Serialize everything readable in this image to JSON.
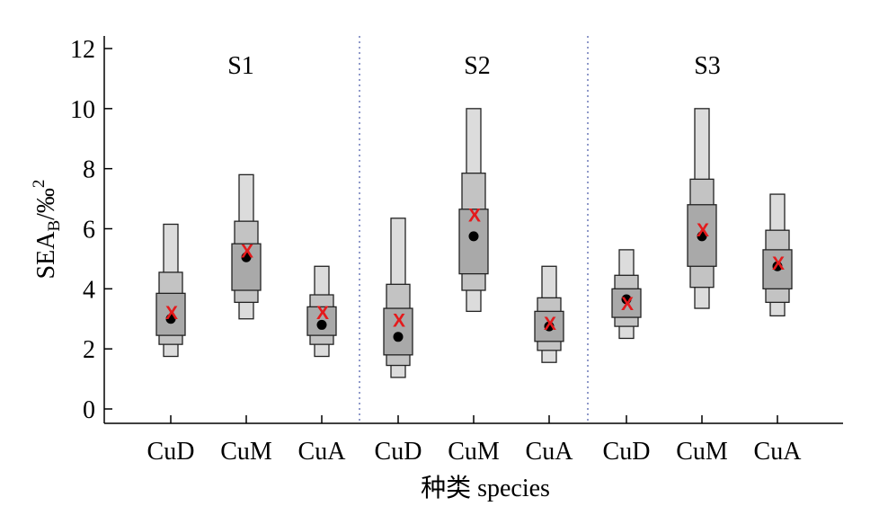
{
  "chart_data": {
    "type": "box",
    "ylabel": "SEA",
    "ylabel_sub": "B",
    "ylabel_unit": "/‰",
    "ylabel_sup": "2",
    "xlabel": "种类 species",
    "ylim": [
      -0.5,
      12.5
    ],
    "yticks": [
      0,
      2,
      4,
      6,
      8,
      10,
      12
    ],
    "grid": false,
    "legend": "none",
    "panels": [
      {
        "label": "S1",
        "categories": [
          "CuD",
          "CuM",
          "CuA"
        ],
        "credible_intervals": {
          "95": [
            [
              1.75,
              6.15
            ],
            [
              3.0,
              7.8
            ],
            [
              1.75,
              4.75
            ]
          ],
          "75": [
            [
              2.15,
              4.55
            ],
            [
              3.55,
              6.25
            ],
            [
              2.15,
              3.8
            ]
          ],
          "50": [
            [
              2.45,
              3.85
            ],
            [
              3.95,
              5.5
            ],
            [
              2.45,
              3.4
            ]
          ]
        },
        "mode": [
          3.0,
          5.05,
          2.8
        ],
        "mean": [
          3.2,
          5.25,
          3.2
        ]
      },
      {
        "label": "S2",
        "categories": [
          "CuD",
          "CuM",
          "CuA"
        ],
        "credible_intervals": {
          "95": [
            [
              1.05,
              6.35
            ],
            [
              3.25,
              10.0
            ],
            [
              1.55,
              4.75
            ]
          ],
          "75": [
            [
              1.45,
              4.15
            ],
            [
              3.95,
              7.85
            ],
            [
              1.95,
              3.7
            ]
          ],
          "50": [
            [
              1.8,
              3.35
            ],
            [
              4.5,
              6.65
            ],
            [
              2.25,
              3.25
            ]
          ]
        },
        "mode": [
          2.4,
          5.75,
          2.75
        ],
        "mean": [
          2.95,
          6.45,
          2.85
        ]
      },
      {
        "label": "S3",
        "categories": [
          "CuD",
          "CuM",
          "CuA"
        ],
        "credible_intervals": {
          "95": [
            [
              2.35,
              5.3
            ],
            [
              3.35,
              10.0
            ],
            [
              3.1,
              7.15
            ]
          ],
          "75": [
            [
              2.75,
              4.45
            ],
            [
              4.05,
              7.65
            ],
            [
              3.55,
              5.95
            ]
          ],
          "50": [
            [
              3.05,
              4.0
            ],
            [
              4.75,
              6.8
            ],
            [
              4.0,
              5.3
            ]
          ]
        },
        "mode": [
          3.65,
          5.75,
          4.75
        ],
        "mean": [
          3.5,
          5.95,
          4.85
        ]
      }
    ]
  },
  "colors": {
    "ci95": "#dcdcdc",
    "ci75": "#c3c3c3",
    "ci50": "#a9a9a9",
    "box_stroke": "#222222",
    "mode_dot": "#000000",
    "mean_marker": "#e41a1c",
    "separator": "#6b78b8"
  },
  "mean_marker_glyph": "X"
}
